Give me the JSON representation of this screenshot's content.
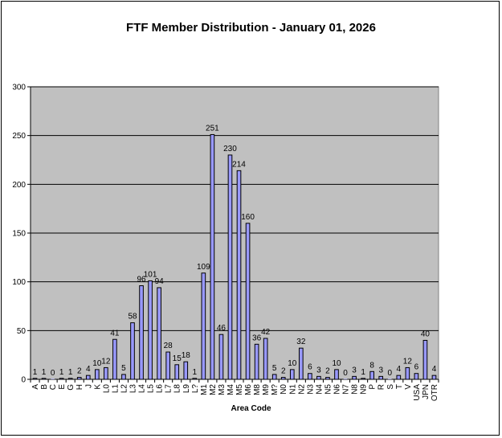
{
  "chart_data": {
    "type": "bar",
    "title": "FTF Member Distribution - January 01, 2026",
    "xlabel": "Area Code",
    "ylabel": "",
    "ylim": [
      0,
      300
    ],
    "yticks": [
      0,
      50,
      100,
      150,
      200,
      250,
      300
    ],
    "grid": true,
    "legend": "none",
    "colors": {
      "bar": "#9999ff",
      "plot_bg": "#c0c0c0",
      "bar_edge": "#000000"
    },
    "categories": [
      "A",
      "B",
      "C",
      "E",
      "G",
      "H",
      "J",
      "K",
      "L0",
      "L1",
      "L2",
      "L3",
      "L4",
      "L5",
      "L6",
      "L7",
      "L8",
      "L9",
      "L?",
      "M1",
      "M2",
      "M3",
      "M4",
      "M5",
      "M6",
      "M8",
      "M9",
      "M?",
      "N0",
      "N1",
      "N2",
      "N3",
      "N4",
      "N5",
      "N6",
      "N7",
      "N8",
      "N9",
      "P",
      "R",
      "S",
      "T",
      "V",
      "USA",
      "JPN",
      "OTR"
    ],
    "values": [
      1,
      1,
      0,
      1,
      1,
      2,
      4,
      10,
      12,
      41,
      5,
      58,
      96,
      101,
      94,
      28,
      15,
      18,
      1,
      109,
      251,
      46,
      230,
      214,
      160,
      36,
      42,
      5,
      2,
      10,
      32,
      6,
      3,
      2,
      10,
      0,
      3,
      1,
      8,
      3,
      0,
      4,
      12,
      6,
      40,
      4
    ]
  }
}
